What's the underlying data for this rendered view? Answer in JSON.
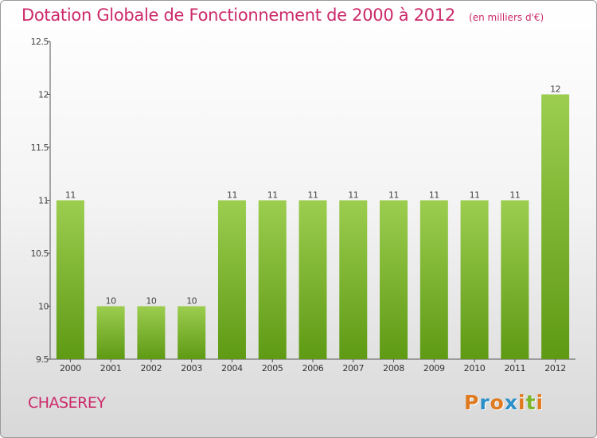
{
  "title": "Dotation Globale de Fonctionnement de 2000 à 2012",
  "unit_note": "(en milliers d'€)",
  "commune": "CHASEREY",
  "brand": "Proxiti",
  "colors": {
    "title": "#cc2a6a",
    "bar_top": "#9ccd4f",
    "bar_bottom": "#5e9a14",
    "logo": [
      "#e07a1f",
      "#2b8fc9",
      "#e07a1f",
      "#2b8fc9",
      "#e07a1f",
      "#7bb52a",
      "#e07a1f"
    ]
  },
  "chart_data": {
    "type": "bar",
    "title": "Dotation Globale de Fonctionnement de 2000 à 2012",
    "subtitle": "(en milliers d'€)",
    "categories": [
      "2000",
      "2001",
      "2002",
      "2003",
      "2004",
      "2005",
      "2006",
      "2007",
      "2008",
      "2009",
      "2010",
      "2011",
      "2012"
    ],
    "values": [
      11,
      10,
      10,
      10,
      11,
      11,
      11,
      11,
      11,
      11,
      11,
      11,
      12
    ],
    "data_labels": [
      "11",
      "10",
      "10",
      "10",
      "11",
      "11",
      "11",
      "11",
      "11",
      "11",
      "11",
      "11",
      "12"
    ],
    "ylim": [
      9.5,
      12.5
    ],
    "yticks": [
      9.5,
      10,
      10.5,
      11,
      11.5,
      12,
      12.5
    ],
    "ytick_labels": [
      "9.5",
      "10",
      "10.5",
      "11",
      "11.5",
      "12",
      "12.5"
    ],
    "xlabel": "",
    "ylabel": "",
    "grid": false,
    "legend": "none"
  }
}
